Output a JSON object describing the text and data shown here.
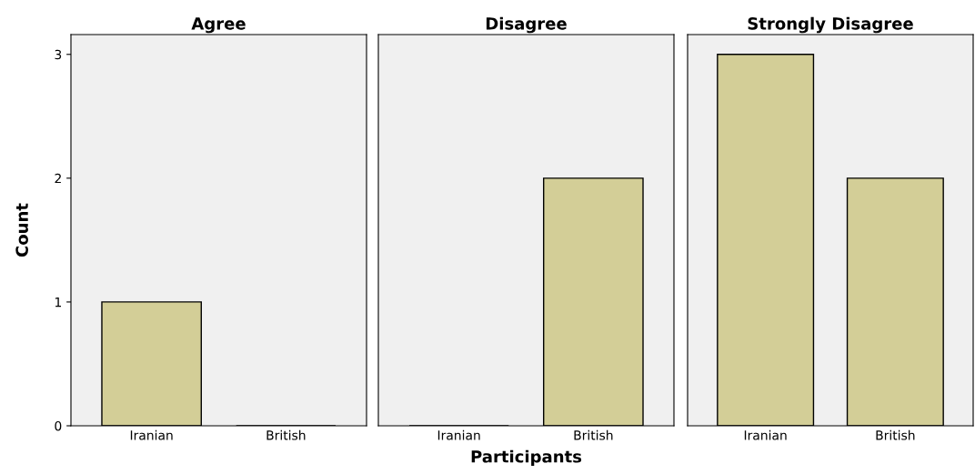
{
  "chart_data": [
    {
      "type": "bar",
      "title": "Agree",
      "ylabel": "Count",
      "categories": [
        "Iranian",
        "British"
      ],
      "values": [
        1,
        0
      ],
      "color": "#d3ce97",
      "ylim": [
        0,
        3.16
      ],
      "yticks": [
        0,
        1,
        2,
        3
      ],
      "grid": false
    },
    {
      "type": "bar",
      "title": "Disagree",
      "xlabel": "Participants",
      "categories": [
        "Iranian",
        "British"
      ],
      "values": [
        0,
        2
      ],
      "color": "#d3ce97",
      "ylim": [
        0,
        3.16
      ],
      "yticks": [
        0,
        1,
        2,
        3
      ],
      "tick_labels": "x",
      "grid": false
    },
    {
      "type": "bar",
      "title": "Strongly Disagree",
      "categories": [
        "Iranian",
        "British"
      ],
      "values": [
        3,
        2
      ],
      "color": "#d3ce97",
      "ylim": [
        0,
        3.16
      ],
      "yticks": [
        0,
        1,
        2,
        3
      ],
      "tick_labels": "x",
      "grid": false
    }
  ]
}
